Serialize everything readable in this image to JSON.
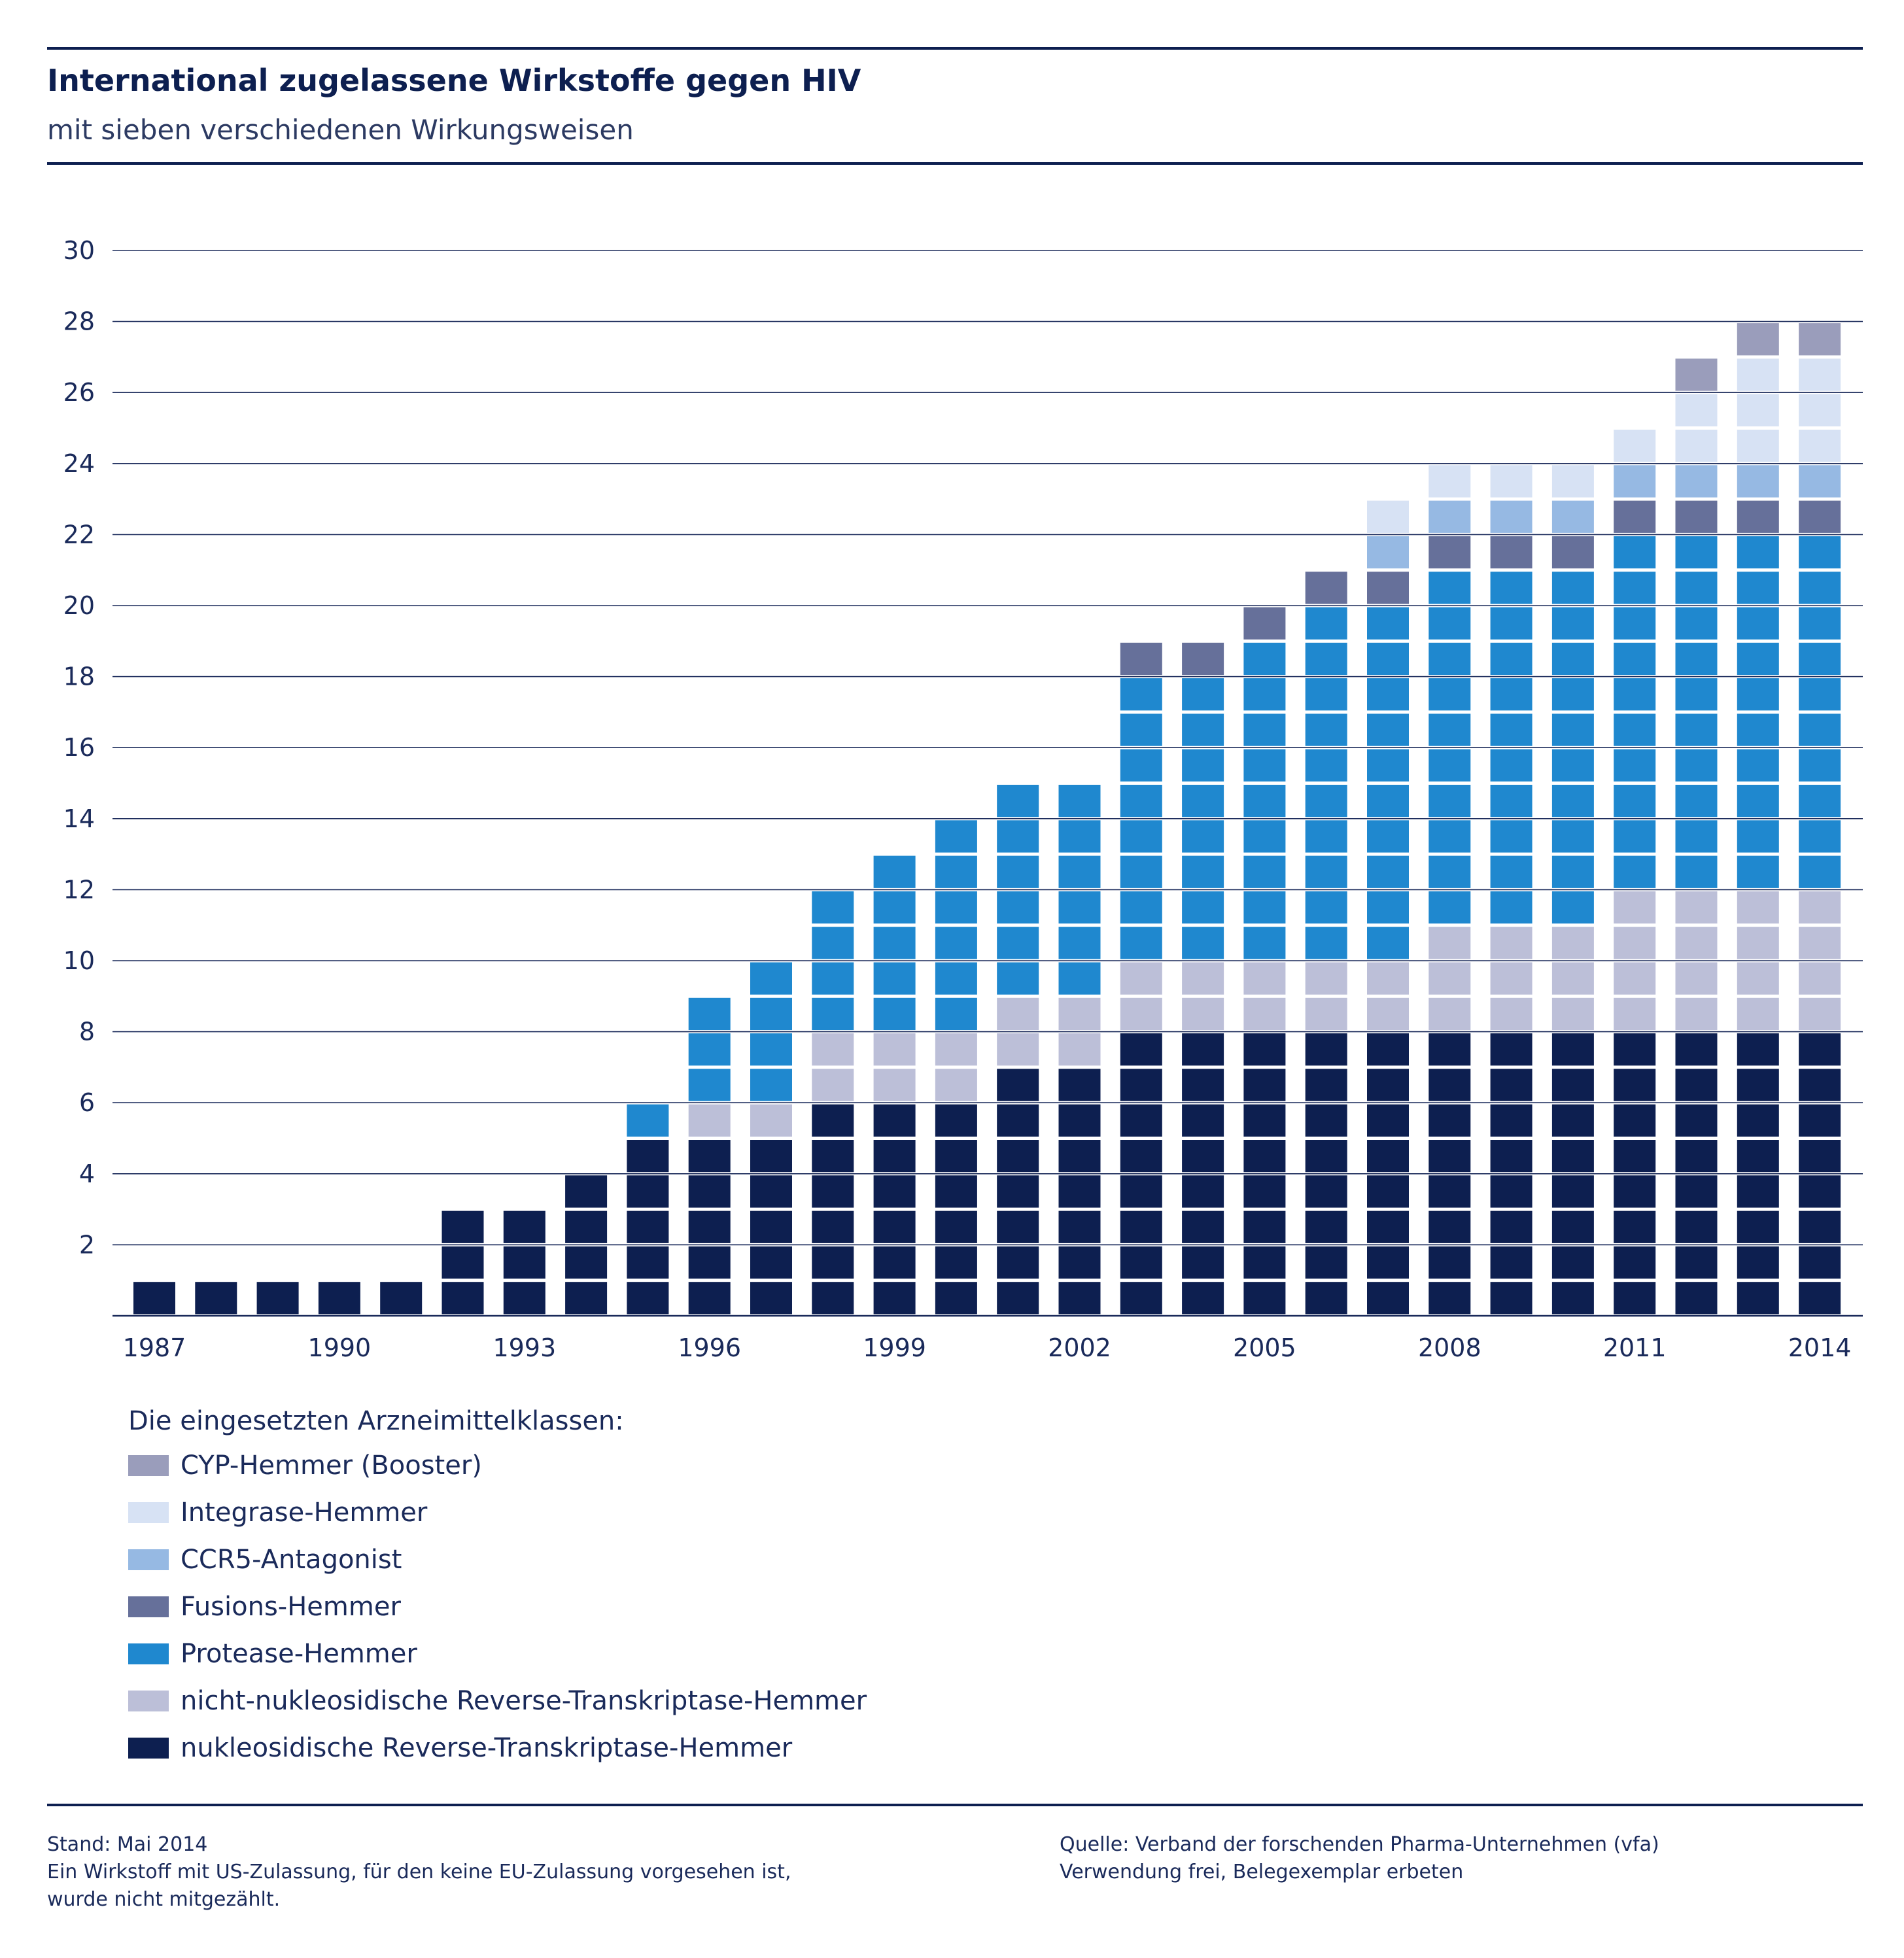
{
  "header": {
    "title": "International zugelassene Wirkstoffe gegen HIV",
    "subtitle": "mit sieben verschiedenen Wirkungsweisen"
  },
  "chart_data": {
    "type": "bar",
    "stacked": true,
    "title": "International zugelassene Wirkstoffe gegen HIV",
    "subtitle": "mit sieben verschiedenen Wirkungsweisen",
    "xlabel": "",
    "ylabel": "",
    "ylim": [
      0,
      30
    ],
    "yticks": [
      2,
      4,
      6,
      8,
      10,
      12,
      14,
      16,
      18,
      20,
      22,
      24,
      26,
      28,
      30
    ],
    "categories": [
      "1987",
      "1988",
      "1989",
      "1990",
      "1991",
      "1992",
      "1993",
      "1994",
      "1995",
      "1996",
      "1997",
      "1998",
      "1999",
      "2000",
      "2001",
      "2002",
      "2003",
      "2004",
      "2005",
      "2006",
      "2007",
      "2008",
      "2009",
      "2010",
      "2011",
      "2012",
      "2013",
      "2014"
    ],
    "xtick_labels": [
      "1987",
      "1990",
      "1993",
      "1996",
      "1999",
      "2002",
      "2005",
      "2008",
      "2011",
      "2014"
    ],
    "grid": true,
    "legend_title": "Die eingesetzten Arzneimittelklassen:",
    "series": [
      {
        "name": "nukleosidische Reverse-Transkriptase-Hemmer",
        "color": "#0d1f50",
        "values": [
          1,
          1,
          1,
          1,
          1,
          3,
          3,
          4,
          5,
          5,
          5,
          6,
          6,
          6,
          7,
          7,
          8,
          8,
          8,
          8,
          8,
          8,
          8,
          8,
          8,
          8,
          8,
          8
        ]
      },
      {
        "name": "nicht-nukleosidische Reverse-Transkriptase-Hemmer",
        "color": "#bcbfd8",
        "values": [
          0,
          0,
          0,
          0,
          0,
          0,
          0,
          0,
          0,
          1,
          1,
          2,
          2,
          2,
          2,
          2,
          2,
          2,
          2,
          2,
          2,
          3,
          3,
          3,
          4,
          4,
          4,
          4
        ]
      },
      {
        "name": "Protease-Hemmer",
        "color": "#1f88cf",
        "values": [
          0,
          0,
          0,
          0,
          0,
          0,
          0,
          0,
          1,
          3,
          4,
          4,
          5,
          6,
          6,
          6,
          8,
          8,
          9,
          10,
          10,
          10,
          10,
          10,
          10,
          10,
          10,
          10
        ]
      },
      {
        "name": "Fusions-Hemmer",
        "color": "#66709a",
        "values": [
          0,
          0,
          0,
          0,
          0,
          0,
          0,
          0,
          0,
          0,
          0,
          0,
          0,
          0,
          0,
          0,
          1,
          1,
          1,
          1,
          1,
          1,
          1,
          1,
          1,
          1,
          1,
          1
        ]
      },
      {
        "name": "CCR5-Antagonist",
        "color": "#96b9e3",
        "values": [
          0,
          0,
          0,
          0,
          0,
          0,
          0,
          0,
          0,
          0,
          0,
          0,
          0,
          0,
          0,
          0,
          0,
          0,
          0,
          0,
          1,
          1,
          1,
          1,
          1,
          1,
          1,
          1
        ]
      },
      {
        "name": "Integrase-Hemmer",
        "color": "#d7e2f4",
        "values": [
          0,
          0,
          0,
          0,
          0,
          0,
          0,
          0,
          0,
          0,
          0,
          0,
          0,
          0,
          0,
          0,
          0,
          0,
          0,
          0,
          1,
          1,
          1,
          1,
          1,
          2,
          3,
          3
        ]
      },
      {
        "name": "CYP-Hemmer (Booster)",
        "color": "#9a9dbb",
        "values": [
          0,
          0,
          0,
          0,
          0,
          0,
          0,
          0,
          0,
          0,
          0,
          0,
          0,
          0,
          0,
          0,
          0,
          0,
          0,
          0,
          0,
          0,
          0,
          0,
          0,
          1,
          1,
          1
        ]
      }
    ],
    "legend_order": [
      "CYP-Hemmer (Booster)",
      "Integrase-Hemmer",
      "CCR5-Antagonist",
      "Fusions-Hemmer",
      "Protease-Hemmer",
      "nicht-nukleosidische Reverse-Transkriptase-Hemmer",
      "nukleosidische Reverse-Transkriptase-Hemmer"
    ]
  },
  "footer": {
    "left": [
      "Stand: Mai 2014",
      "Ein Wirkstoff mit US-Zulassung, für den keine EU-Zulassung vorgesehen ist,",
      "wurde nicht mitgezählt."
    ],
    "right": [
      "Quelle: Verband der forschenden Pharma-Unternehmen (vfa)",
      "Verwendung frei, Belegexemplar erbeten"
    ]
  }
}
